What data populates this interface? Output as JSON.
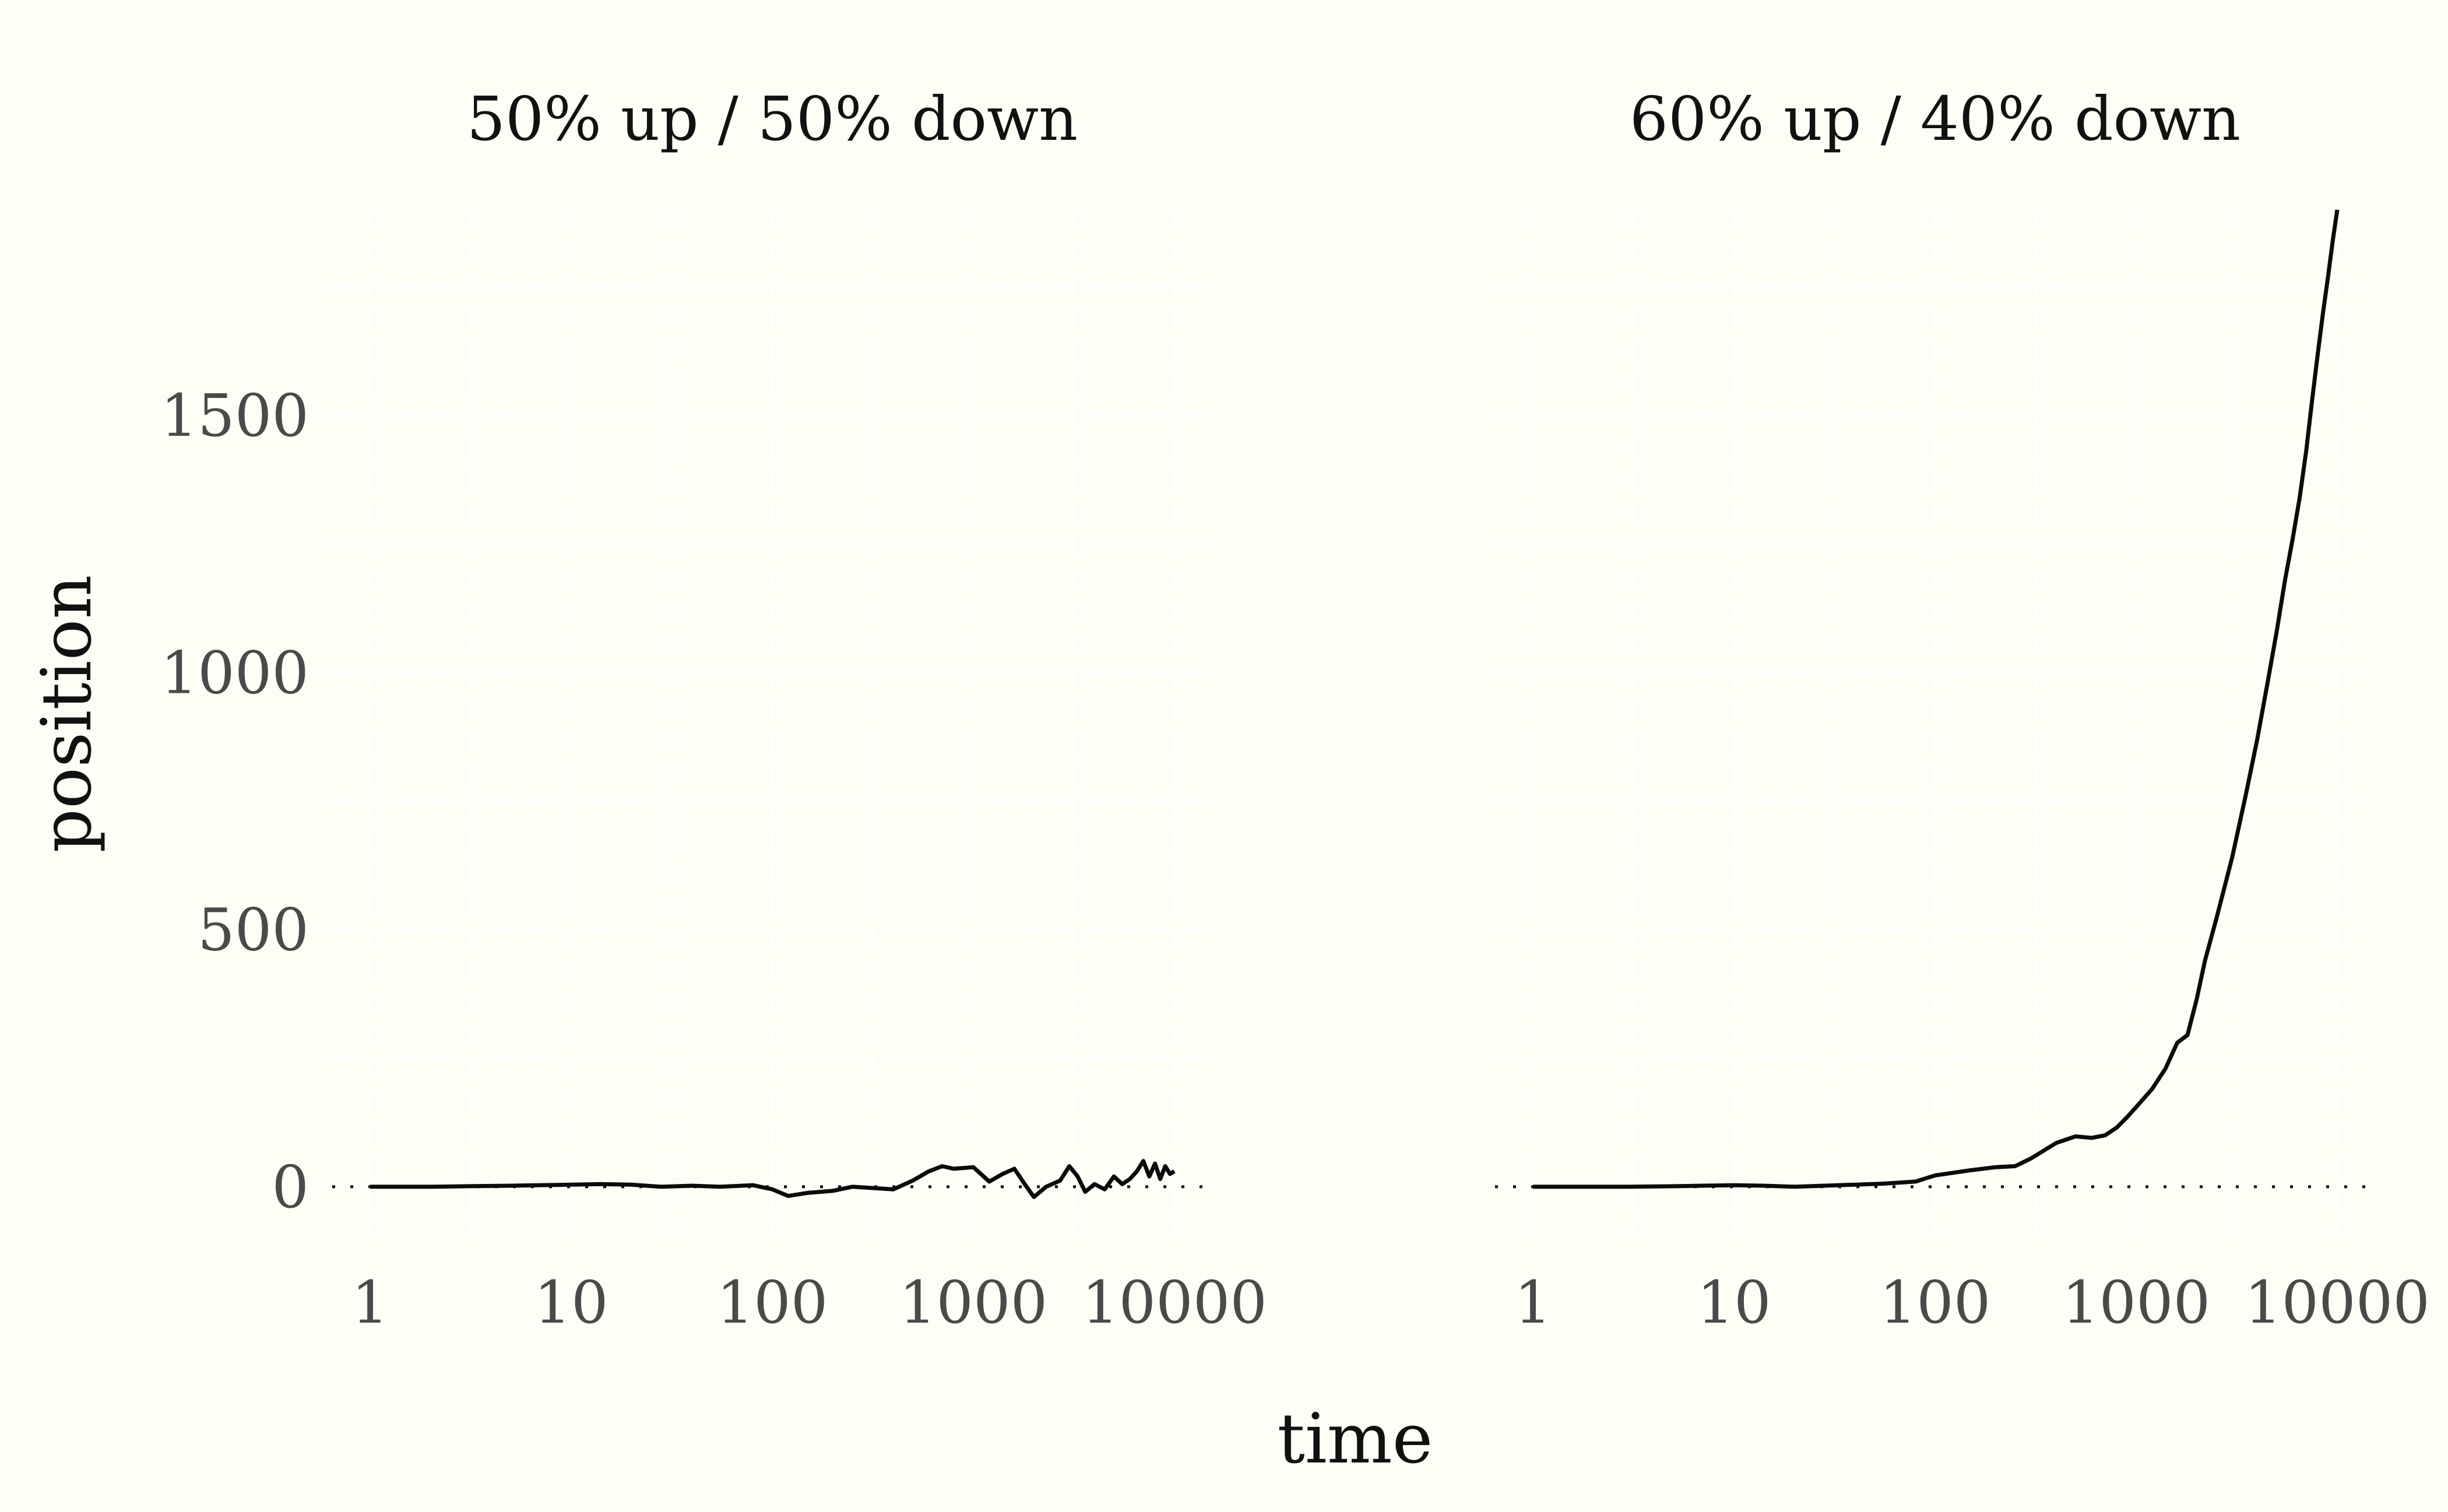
{
  "chart_data": {
    "type": "line",
    "xlabel": "time",
    "ylabel": "position",
    "x_scale": "log10",
    "xlim": [
      1,
      10000
    ],
    "ylim": [
      -100,
      1900
    ],
    "x_ticks": [
      1,
      10,
      100,
      1000,
      10000
    ],
    "x_tick_labels": [
      "1",
      "10",
      "100",
      "1000",
      "10000"
    ],
    "y_ticks": [
      0,
      500,
      1000,
      1500
    ],
    "y_tick_labels": [
      "0",
      "500",
      "1000",
      "1500"
    ],
    "reference_line": {
      "y": 0,
      "style": "dotted"
    },
    "grid": true,
    "panels": [
      {
        "title": "50% up / 50% down",
        "series": [
          {
            "x": [
              1,
              2,
              3,
              5,
              7,
              10,
              14,
              20,
              28,
              40,
              55,
              80,
              100,
              120,
              150,
              200,
              250,
              300,
              400,
              500,
              600,
              700,
              800,
              1000,
              1200,
              1400,
              1600,
              1800,
              2000,
              2300,
              2700,
              3000,
              3300,
              3600,
              4000,
              4500,
              5000,
              5500,
              6000,
              6500,
              7000,
              7500,
              8000,
              8500,
              9000,
              9500,
              10000
            ],
            "y": [
              0,
              0,
              1,
              2,
              3,
              4,
              5,
              4,
              0,
              2,
              0,
              3,
              -5,
              -18,
              -12,
              -8,
              0,
              -2,
              -5,
              12,
              30,
              40,
              35,
              38,
              10,
              25,
              35,
              5,
              -20,
              0,
              12,
              40,
              20,
              -10,
              5,
              -5,
              20,
              5,
              15,
              30,
              50,
              20,
              45,
              15,
              40,
              25,
              30
            ]
          }
        ]
      },
      {
        "title": "60% up / 40% down",
        "series": [
          {
            "x": [
              1,
              2,
              3,
              5,
              7,
              10,
              14,
              20,
              28,
              40,
              55,
              80,
              100,
              150,
              200,
              250,
              300,
              400,
              500,
              600,
              700,
              800,
              900,
              1000,
              1200,
              1400,
              1600,
              1800,
              2000,
              2200,
              2500,
              3000,
              3500,
              4000,
              4500,
              5000,
              5500,
              6000,
              6500,
              7000,
              7500,
              8000,
              8500,
              9000,
              9500,
              10000
            ],
            "y": [
              0,
              0,
              0,
              1,
              2,
              3,
              2,
              0,
              2,
              4,
              6,
              10,
              22,
              32,
              38,
              40,
              55,
              85,
              98,
              95,
              100,
              115,
              135,
              155,
              190,
              230,
              280,
              295,
              365,
              440,
              520,
              640,
              760,
              870,
              980,
              1080,
              1180,
              1260,
              1340,
              1430,
              1530,
              1620,
              1700,
              1770,
              1840,
              1900
            ]
          }
        ]
      }
    ]
  }
}
